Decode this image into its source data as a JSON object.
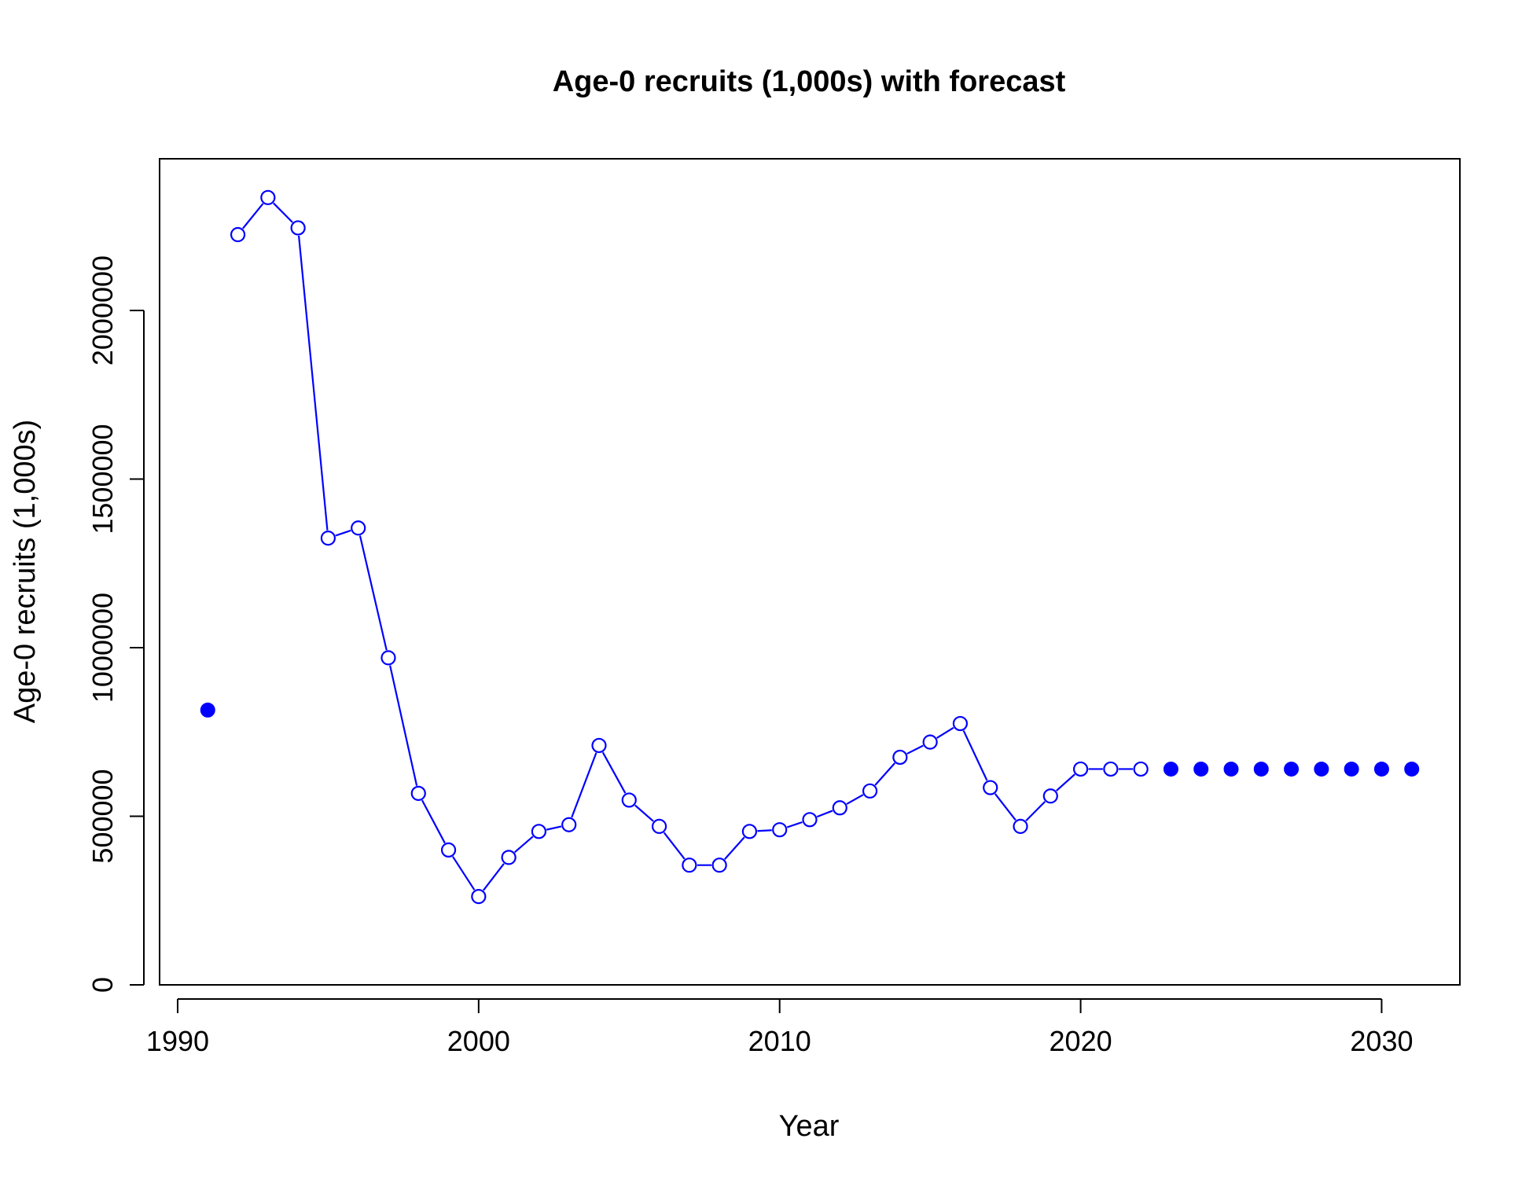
{
  "chart_data": {
    "type": "line",
    "title": "Age-0 recruits (1,000s) with forecast",
    "xlabel": "Year",
    "ylabel": "Age-0 recruits (1,000s)",
    "xlim": [
      1989.4,
      2032.6
    ],
    "ylim": [
      0,
      2450000
    ],
    "x_ticks": [
      1990,
      2000,
      2010,
      2020,
      2030
    ],
    "y_ticks": [
      0,
      500000,
      1000000,
      1500000,
      2000000
    ],
    "x_tick_labels": [
      "1990",
      "2000",
      "2010",
      "2020",
      "2030"
    ],
    "y_tick_labels": [
      "0",
      "500000",
      "1000000",
      "1500000",
      "2000000"
    ],
    "grid": false,
    "line_color": "#0000ff",
    "series": [
      {
        "marker": "open-circle",
        "connected": true,
        "x": [
          1992,
          1993,
          1994,
          1995,
          1996,
          1997,
          1998,
          1999,
          2000,
          2001,
          2002,
          2003,
          2004,
          2005,
          2006,
          2007,
          2008,
          2009,
          2010,
          2011,
          2012,
          2013,
          2014,
          2015,
          2016,
          2017,
          2018,
          2019,
          2020,
          2021,
          2022
        ],
        "y": [
          2225000,
          2335000,
          2245000,
          1325000,
          1355000,
          970000,
          568000,
          400000,
          262000,
          378000,
          455000,
          475000,
          710000,
          548000,
          470000,
          355000,
          355000,
          455000,
          460000,
          490000,
          525000,
          575000,
          675000,
          720000,
          775000,
          585000,
          470000,
          560000,
          640000,
          640000,
          640000
        ]
      },
      {
        "marker": "filled-circle",
        "connected": false,
        "x": [
          1991,
          2023,
          2024,
          2025,
          2026,
          2027,
          2028,
          2029,
          2030,
          2031
        ],
        "y": [
          815000,
          640000,
          640000,
          640000,
          640000,
          640000,
          640000,
          640000,
          640000,
          640000
        ]
      }
    ]
  }
}
